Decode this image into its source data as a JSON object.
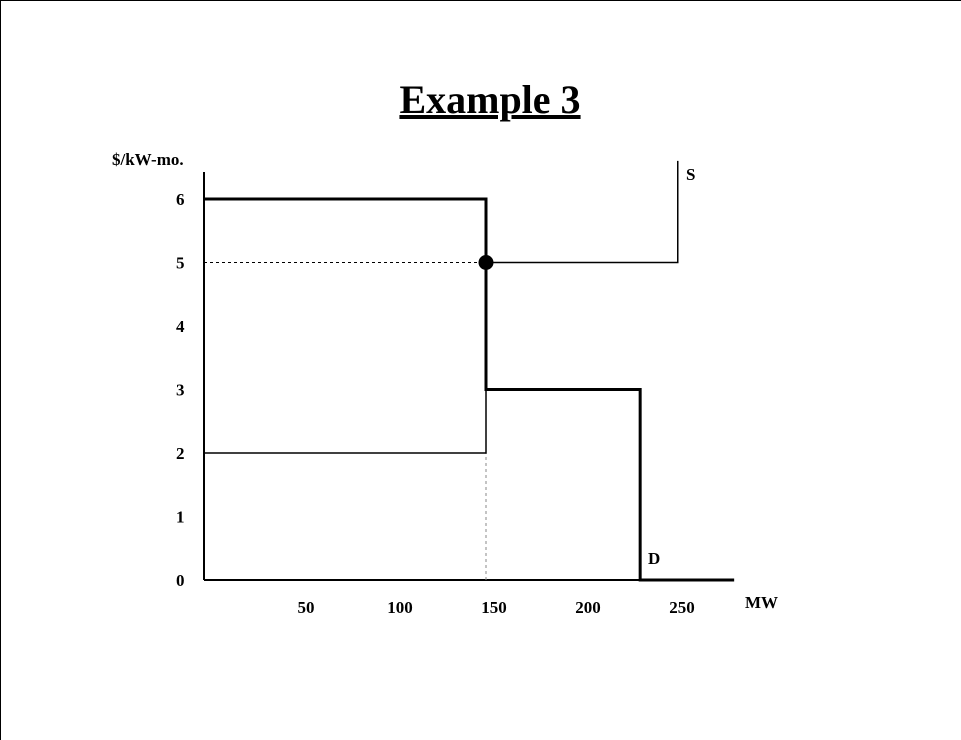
{
  "chart_data": {
    "type": "line",
    "title": "Example 3",
    "ylabel": "$/kW-mo.",
    "xlabel": "MW",
    "x_ticks": [
      50,
      100,
      150,
      200,
      250
    ],
    "x_tick_labels": [
      "50",
      "100",
      "150",
      "200",
      "250"
    ],
    "y_ticks": [
      0,
      1,
      2,
      3,
      4,
      5,
      6
    ],
    "y_tick_labels": [
      "0",
      "1",
      "2",
      "3",
      "4",
      "5",
      "6"
    ],
    "xlim": [
      0,
      280
    ],
    "ylim": [
      0,
      6.6
    ],
    "series": [
      {
        "name": "S",
        "points": [
          [
            0,
            2
          ],
          [
            150,
            2
          ],
          [
            150,
            5
          ],
          [
            252,
            5
          ],
          [
            252,
            6.6
          ]
        ]
      },
      {
        "name": "D",
        "points": [
          [
            0,
            6
          ],
          [
            150,
            6
          ],
          [
            150,
            3
          ],
          [
            232,
            3
          ],
          [
            232,
            0
          ],
          [
            282,
            0
          ]
        ]
      }
    ],
    "equilibrium": {
      "x": 150,
      "y": 5
    },
    "reference_lines": [
      {
        "axis": "y",
        "value": 5,
        "from": 0,
        "to": 150
      },
      {
        "axis": "x",
        "value": 150,
        "from": 0,
        "to": 2
      }
    ],
    "grid": false,
    "legend": "none"
  },
  "colors": {
    "line": "#000000",
    "background": "#ffffff"
  }
}
